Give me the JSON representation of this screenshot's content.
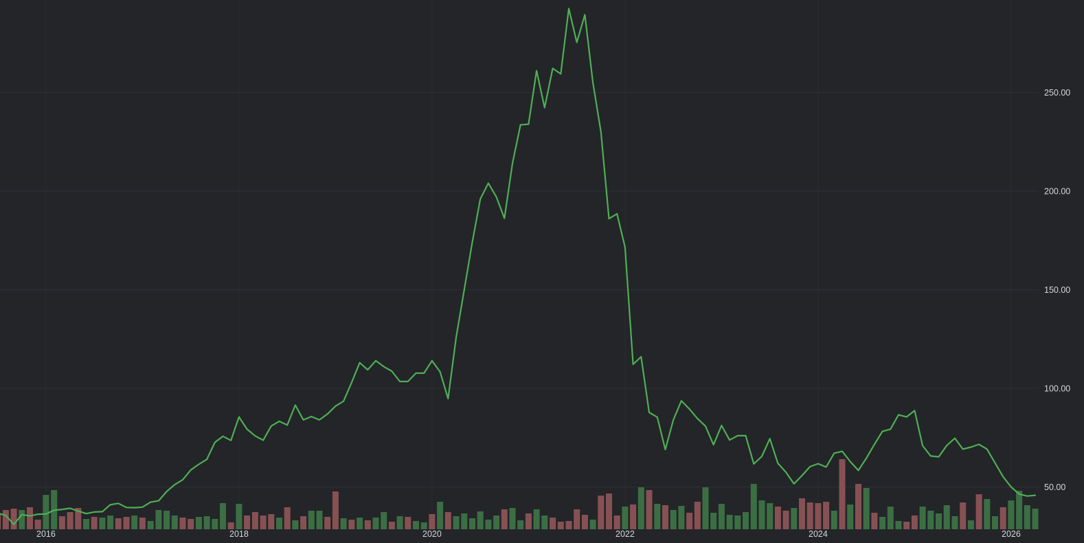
{
  "app": {
    "description": "dark-theme stock price monthly line chart with volume bars",
    "background_color": "#232529",
    "grid_color": "#2e3137",
    "year_grid_color": "rgba(255,255,255,0.035)",
    "text_color": "#d5d7da"
  },
  "chart_data": {
    "type": "line",
    "subtype": "price-line-with-volume-bars",
    "title": "",
    "legend": [],
    "grid": "horizontal",
    "x_tick_labels": [
      "2016",
      "2018",
      "2020",
      "2022",
      "2024",
      "2026"
    ],
    "y_tick_labels": [
      "50.00",
      "100.00",
      "150.00",
      "200.00",
      "250.00"
    ],
    "y_ticks": [
      50,
      100,
      150,
      200,
      250
    ],
    "ylim": [
      28,
      296
    ],
    "xlabel": "",
    "ylabel": "",
    "line_color": "#4faf54",
    "volume_up_color": "#3c6e44",
    "volume_down_color": "#875153",
    "series_note": "each month entry = [month, close, relative_volume, direction up/down]",
    "months": [
      [
        "2015-07",
        36.7,
        22,
        "d"
      ],
      [
        "2015-08",
        35.6,
        28,
        "d"
      ],
      [
        "2015-09",
        31.0,
        30,
        "d"
      ],
      [
        "2015-10",
        36.0,
        28,
        "u"
      ],
      [
        "2015-11",
        35.3,
        32,
        "d"
      ],
      [
        "2015-12",
        36.2,
        14,
        "d"
      ],
      [
        "2016-01",
        36.3,
        50,
        "u"
      ],
      [
        "2016-02",
        38.2,
        57,
        "u"
      ],
      [
        "2016-03",
        38.6,
        19,
        "d"
      ],
      [
        "2016-04",
        39.2,
        25,
        "d"
      ],
      [
        "2016-05",
        37.8,
        31,
        "d"
      ],
      [
        "2016-06",
        36.5,
        15,
        "u"
      ],
      [
        "2016-07",
        37.3,
        18,
        "d"
      ],
      [
        "2016-08",
        37.5,
        17,
        "u"
      ],
      [
        "2016-09",
        41.0,
        20,
        "u"
      ],
      [
        "2016-10",
        41.7,
        16,
        "d"
      ],
      [
        "2016-11",
        39.6,
        18,
        "d"
      ],
      [
        "2016-12",
        39.5,
        20,
        "u"
      ],
      [
        "2017-01",
        39.8,
        17,
        "d"
      ],
      [
        "2017-02",
        42.3,
        12,
        "u"
      ],
      [
        "2017-03",
        43.0,
        28,
        "u"
      ],
      [
        "2017-04",
        47.7,
        27,
        "u"
      ],
      [
        "2017-05",
        51.2,
        20,
        "u"
      ],
      [
        "2017-06",
        53.7,
        17,
        "d"
      ],
      [
        "2017-07",
        58.6,
        15,
        "d"
      ],
      [
        "2017-08",
        61.5,
        18,
        "u"
      ],
      [
        "2017-09",
        64.0,
        19,
        "u"
      ],
      [
        "2017-10",
        72.6,
        15,
        "u"
      ],
      [
        "2017-11",
        75.7,
        38,
        "u"
      ],
      [
        "2017-12",
        73.6,
        10,
        "d"
      ],
      [
        "2018-01",
        85.5,
        37,
        "u"
      ],
      [
        "2018-02",
        79.3,
        20,
        "d"
      ],
      [
        "2018-03",
        75.9,
        25,
        "d"
      ],
      [
        "2018-04",
        73.7,
        20,
        "d"
      ],
      [
        "2018-05",
        80.9,
        22,
        "d"
      ],
      [
        "2018-06",
        83.3,
        17,
        "u"
      ],
      [
        "2018-07",
        81.4,
        32,
        "d"
      ],
      [
        "2018-08",
        91.5,
        13,
        "u"
      ],
      [
        "2018-09",
        84.0,
        19,
        "d"
      ],
      [
        "2018-10",
        85.7,
        27,
        "u"
      ],
      [
        "2018-11",
        84.0,
        27,
        "u"
      ],
      [
        "2018-12",
        87.0,
        18,
        "d"
      ],
      [
        "2019-01",
        91.0,
        55,
        "d"
      ],
      [
        "2019-02",
        93.5,
        16,
        "u"
      ],
      [
        "2019-03",
        103.0,
        14,
        "d"
      ],
      [
        "2019-04",
        113.0,
        17,
        "u"
      ],
      [
        "2019-05",
        109.4,
        13,
        "d"
      ],
      [
        "2019-06",
        114.0,
        17,
        "u"
      ],
      [
        "2019-07",
        111.0,
        25,
        "u"
      ],
      [
        "2019-08",
        108.7,
        11,
        "d"
      ],
      [
        "2019-09",
        103.5,
        19,
        "u"
      ],
      [
        "2019-10",
        103.5,
        18,
        "d"
      ],
      [
        "2019-11",
        107.7,
        12,
        "u"
      ],
      [
        "2019-12",
        107.7,
        10,
        "u"
      ],
      [
        "2020-01",
        114.0,
        22,
        "d"
      ],
      [
        "2020-02",
        108.4,
        40,
        "u"
      ],
      [
        "2020-03",
        94.8,
        25,
        "d"
      ],
      [
        "2020-04",
        126.0,
        19,
        "u"
      ],
      [
        "2020-05",
        150.0,
        23,
        "u"
      ],
      [
        "2020-06",
        174.0,
        16,
        "u"
      ],
      [
        "2020-07",
        196.0,
        26,
        "u"
      ],
      [
        "2020-08",
        204.0,
        14,
        "u"
      ],
      [
        "2020-09",
        197.0,
        20,
        "u"
      ],
      [
        "2020-10",
        186.2,
        29,
        "d"
      ],
      [
        "2020-11",
        214.0,
        31,
        "u"
      ],
      [
        "2020-12",
        233.6,
        13,
        "u"
      ],
      [
        "2021-01",
        233.9,
        23,
        "d"
      ],
      [
        "2021-02",
        261.0,
        29,
        "u"
      ],
      [
        "2021-03",
        242.3,
        20,
        "u"
      ],
      [
        "2021-04",
        262.2,
        17,
        "d"
      ],
      [
        "2021-05",
        259.4,
        11,
        "d"
      ],
      [
        "2021-06",
        292.5,
        12,
        "d"
      ],
      [
        "2021-07",
        275.4,
        29,
        "d"
      ],
      [
        "2021-08",
        289.4,
        21,
        "d"
      ],
      [
        "2021-09",
        255.0,
        14,
        "u"
      ],
      [
        "2021-10",
        230.0,
        49,
        "d"
      ],
      [
        "2021-11",
        186.0,
        52,
        "d"
      ],
      [
        "2021-12",
        188.5,
        20,
        "d"
      ],
      [
        "2022-01",
        171.5,
        33,
        "u"
      ],
      [
        "2022-02",
        112.2,
        36,
        "d"
      ],
      [
        "2022-03",
        116.0,
        61,
        "u"
      ],
      [
        "2022-04",
        87.8,
        57,
        "d"
      ],
      [
        "2022-05",
        85.4,
        37,
        "u"
      ],
      [
        "2022-06",
        69.0,
        35,
        "d"
      ],
      [
        "2022-07",
        84.0,
        28,
        "u"
      ],
      [
        "2022-08",
        93.7,
        34,
        "u"
      ],
      [
        "2022-09",
        89.5,
        24,
        "d"
      ],
      [
        "2022-10",
        84.7,
        40,
        "d"
      ],
      [
        "2022-11",
        80.8,
        61,
        "u"
      ],
      [
        "2022-12",
        71.4,
        24,
        "u"
      ],
      [
        "2023-01",
        81.2,
        37,
        "u"
      ],
      [
        "2023-02",
        73.8,
        21,
        "u"
      ],
      [
        "2023-03",
        76.0,
        20,
        "u"
      ],
      [
        "2023-04",
        76.0,
        25,
        "u"
      ],
      [
        "2023-05",
        61.7,
        66,
        "u"
      ],
      [
        "2023-06",
        65.5,
        42,
        "u"
      ],
      [
        "2023-07",
        74.5,
        38,
        "u"
      ],
      [
        "2023-08",
        62.0,
        33,
        "d"
      ],
      [
        "2023-09",
        57.5,
        27,
        "d"
      ],
      [
        "2023-10",
        51.6,
        31,
        "u"
      ],
      [
        "2023-11",
        55.8,
        45,
        "d"
      ],
      [
        "2023-12",
        60.3,
        39,
        "d"
      ],
      [
        "2024-01",
        61.8,
        38,
        "d"
      ],
      [
        "2024-02",
        60.1,
        40,
        "d"
      ],
      [
        "2024-03",
        67.1,
        27,
        "u"
      ],
      [
        "2024-04",
        68.1,
        102,
        "d"
      ],
      [
        "2024-05",
        62.9,
        36,
        "u"
      ],
      [
        "2024-06",
        58.4,
        66,
        "d"
      ],
      [
        "2024-07",
        64.6,
        60,
        "u"
      ],
      [
        "2024-08",
        71.6,
        24,
        "d"
      ],
      [
        "2024-09",
        78.2,
        18,
        "u"
      ],
      [
        "2024-10",
        79.3,
        33,
        "u"
      ],
      [
        "2024-11",
        86.6,
        12,
        "u"
      ],
      [
        "2024-12",
        85.5,
        11,
        "d"
      ],
      [
        "2025-01",
        88.7,
        20,
        "d"
      ],
      [
        "2025-02",
        70.9,
        33,
        "u"
      ],
      [
        "2025-03",
        65.7,
        27,
        "u"
      ],
      [
        "2025-04",
        65.3,
        23,
        "u"
      ],
      [
        "2025-05",
        71.0,
        35,
        "u"
      ],
      [
        "2025-06",
        74.7,
        19,
        "u"
      ],
      [
        "2025-07",
        69.2,
        39,
        "d"
      ],
      [
        "2025-08",
        70.2,
        13,
        "u"
      ],
      [
        "2025-09",
        71.6,
        51,
        "d"
      ],
      [
        "2025-10",
        69.2,
        44,
        "u"
      ],
      [
        "2025-11",
        62.2,
        19,
        "u"
      ],
      [
        "2025-12",
        55.2,
        32,
        "d"
      ],
      [
        "2026-01",
        50.0,
        42,
        "u"
      ],
      [
        "2026-02",
        46.4,
        56,
        "u"
      ],
      [
        "2026-03",
        45.4,
        35,
        "u"
      ],
      [
        "2026-04",
        45.8,
        30,
        "u"
      ]
    ],
    "year_tick_month_indices": [
      6,
      30,
      54,
      78,
      102,
      126
    ]
  }
}
